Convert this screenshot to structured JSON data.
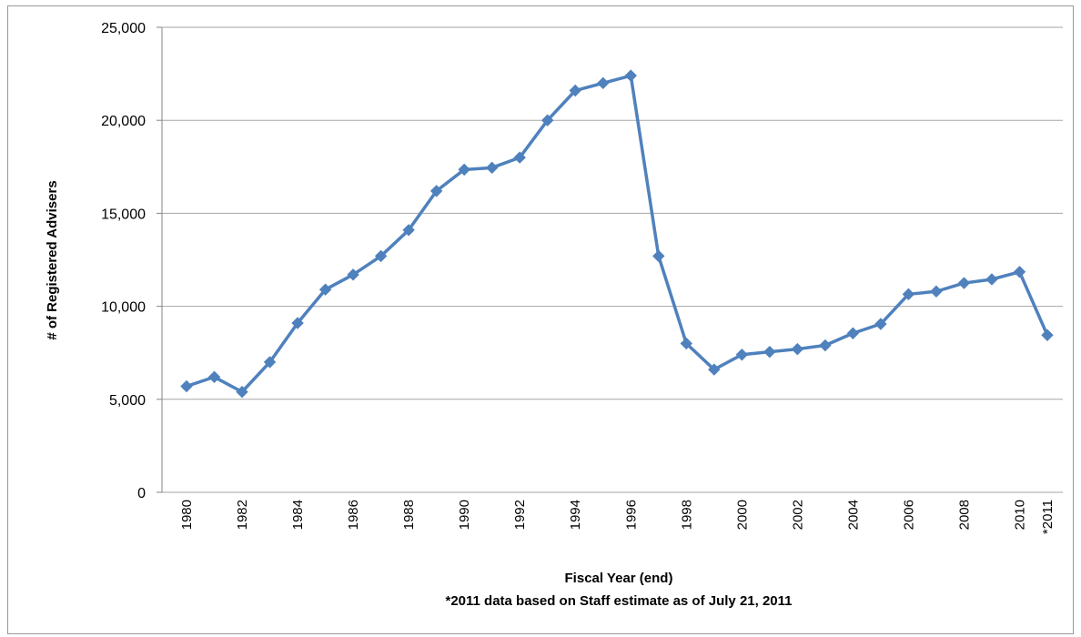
{
  "chart_data": {
    "type": "line",
    "x_label": "Fiscal Year (end)",
    "note": "*2011 data based on Staff estimate as of July 21, 2011",
    "y_label": "# of Registered Advisers",
    "categories": [
      "1980",
      null,
      "1982",
      null,
      "1984",
      null,
      "1986",
      null,
      "1988",
      null,
      "1990",
      null,
      "1992",
      null,
      "1994",
      null,
      "1996",
      null,
      "1998",
      null,
      "2000",
      null,
      "2002",
      null,
      "2004",
      null,
      "2006",
      null,
      "2008",
      null,
      "2010",
      "*2011"
    ],
    "series": [
      {
        "name": "Registered Advisers",
        "color": "#4f81bd",
        "values": [
          5700,
          6200,
          5400,
          7000,
          9100,
          10900,
          11700,
          12700,
          14100,
          16200,
          17350,
          17450,
          18000,
          20000,
          21600,
          22000,
          22400,
          12700,
          8000,
          6600,
          7400,
          7550,
          7700,
          7900,
          8550,
          9050,
          10650,
          10800,
          11250,
          11450,
          11850,
          8450
        ]
      }
    ],
    "ylim": [
      0,
      25000
    ],
    "yticks": [
      {
        "value": 0,
        "label": "0"
      },
      {
        "value": 5000,
        "label": "5,000"
      },
      {
        "value": 10000,
        "label": "10,000"
      },
      {
        "value": 15000,
        "label": "15,000"
      },
      {
        "value": 20000,
        "label": "20,000"
      },
      {
        "value": 25000,
        "label": "25,000"
      }
    ],
    "grid": true
  }
}
